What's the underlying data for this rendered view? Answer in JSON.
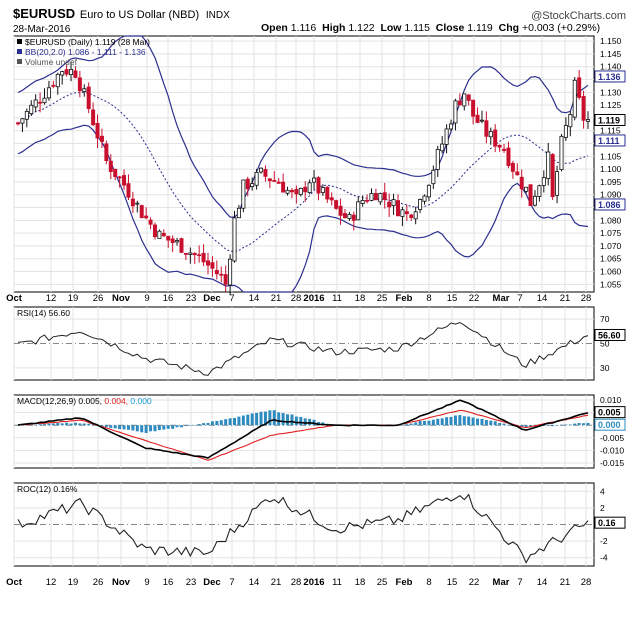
{
  "header": {
    "symbol": "$EURUSD",
    "name": "Euro to US Dollar (NBD)",
    "exchange": "INDX",
    "date": "28-Mar-2016",
    "watermark": "@StockCharts.com",
    "quote": {
      "open_label": "Open",
      "open": "1.116",
      "high_label": "High",
      "high": "1.122",
      "low_label": "Low",
      "low": "1.115",
      "close_label": "Close",
      "close": "1.119",
      "chg_label": "Chg",
      "chg": "+0.003 (+0.29%)"
    }
  },
  "price_panel": {
    "legend": [
      {
        "text": "$EURUSD (Daily) 1.119 (28 Mar)",
        "color": "#000000"
      },
      {
        "text": "BB(20,2.0) 1.086 - 1.111 - 1.136",
        "color": "#2b2f8f"
      },
      {
        "text": "Volume undef",
        "color": "#555555"
      }
    ],
    "y_ticks": [
      "1.150",
      "1.145",
      "1.140",
      "1.135",
      "1.130",
      "1.125",
      "1.120",
      "1.115",
      "1.110",
      "1.105",
      "1.100",
      "1.095",
      "1.090",
      "1.085",
      "1.080",
      "1.075",
      "1.070",
      "1.065",
      "1.060",
      "1.055"
    ],
    "price_label": "1.119",
    "upper_band_label": "1.136",
    "middle_band_label": "1.111",
    "lower_band_label": "1.086"
  },
  "rsi_panel": {
    "legend": "RSI(14) 56.60",
    "y_ticks": [
      "70",
      "50",
      "30"
    ],
    "value_label": "56.60"
  },
  "macd_panel": {
    "legend_prefix": "MACD(12,26,9) 0.005,",
    "legend_signal": "0.004,",
    "legend_hist": "0.000",
    "y_ticks": [
      "0.010",
      "0.005",
      "0.000",
      "-0.005",
      "-0.010",
      "-0.015"
    ],
    "macd_label": "0.005",
    "hist_label": "0.000"
  },
  "roc_panel": {
    "legend": "ROC(12) 0.16%",
    "y_ticks": [
      "4",
      "2",
      "-2",
      "-4"
    ],
    "value_label": "0.16"
  },
  "x_axis_labels": [
    "Oct",
    "12",
    "19",
    "26",
    "Nov",
    "9",
    "16",
    "23",
    "Dec",
    "7",
    "14",
    "21",
    "28",
    "2016",
    "11",
    "18",
    "25",
    "Feb",
    "8",
    "15",
    "22",
    "Mar",
    "7",
    "14",
    "21",
    "28"
  ],
  "colors": {
    "up": "#111111",
    "down": "#c8102e",
    "bands": "#2b2f8f",
    "macd": "#000000",
    "signal": "#e02020",
    "histogram": "#2e8bc0",
    "accent_signal_text": "#e02020",
    "accent_hist_text": "#1a9ad6"
  },
  "chart_data": [
    {
      "type": "candlestick",
      "title": "$EURUSD Euro to US Dollar (NBD)",
      "x": [
        "2015-09-28",
        "2015-10-05",
        "2015-10-12",
        "2015-10-19",
        "2015-10-26",
        "2015-11-02",
        "2015-11-09",
        "2015-11-16",
        "2015-11-23",
        "2015-11-30",
        "2015-12-07",
        "2015-12-14",
        "2015-12-21",
        "2015-12-28",
        "2016-01-04",
        "2016-01-11",
        "2016-01-18",
        "2016-01-25",
        "2016-02-01",
        "2016-02-08",
        "2016-02-15",
        "2016-02-22",
        "2016-03-01",
        "2016-03-07",
        "2016-03-14",
        "2016-03-21",
        "2016-03-28"
      ],
      "close_approx": [
        1.118,
        1.128,
        1.138,
        1.127,
        1.1,
        1.086,
        1.077,
        1.07,
        1.061,
        1.088,
        1.099,
        1.092,
        1.097,
        1.087,
        1.085,
        1.091,
        1.088,
        1.083,
        1.094,
        1.124,
        1.113,
        1.102,
        1.087,
        1.103,
        1.127,
        1.117,
        1.119
      ],
      "ylim": [
        1.052,
        1.152
      ],
      "series": [
        {
          "name": "$EURUSD (Daily)"
        },
        {
          "name": "BB(20,2.0)"
        }
      ]
    },
    {
      "type": "line",
      "name": "RSI(14)",
      "x": [
        "2015-09-28",
        "2015-10-19",
        "2015-11-09",
        "2015-11-30",
        "2015-12-21",
        "2016-01-11",
        "2016-02-01",
        "2016-02-22",
        "2016-03-14",
        "2016-03-28"
      ],
      "values": [
        49,
        61,
        38,
        26,
        53,
        43,
        46,
        69,
        32,
        57
      ],
      "ylim": [
        20,
        80
      ]
    },
    {
      "type": "line",
      "name": "MACD(12,26,9)",
      "x": [
        "2015-09-28",
        "2015-10-19",
        "2015-11-09",
        "2015-11-30",
        "2015-12-21",
        "2016-01-11",
        "2016-02-01",
        "2016-02-22",
        "2016-03-14",
        "2016-03-28"
      ],
      "series": [
        {
          "name": "MACD",
          "values": [
            0.0,
            0.003,
            -0.009,
            -0.013,
            0.002,
            0.0,
            0.0,
            0.01,
            -0.002,
            0.005
          ]
        },
        {
          "name": "Signal",
          "values": [
            0.0,
            0.002,
            -0.006,
            -0.014,
            -0.004,
            0.0,
            0.0,
            0.006,
            -0.001,
            0.004
          ]
        },
        {
          "name": "Histogram",
          "values": [
            0.0,
            0.002,
            -0.004,
            0.002,
            0.003,
            0.0,
            0.0,
            0.003,
            -0.002,
            0.0
          ]
        }
      ],
      "ylim": [
        -0.017,
        0.012
      ]
    },
    {
      "type": "line",
      "name": "ROC(12)",
      "x": [
        "2015-09-28",
        "2015-10-19",
        "2015-11-09",
        "2015-11-30",
        "2015-12-21",
        "2016-01-11",
        "2016-02-01",
        "2016-02-22",
        "2016-03-14",
        "2016-03-28"
      ],
      "values": [
        0.0,
        2.5,
        -3.0,
        -3.5,
        3.5,
        -0.5,
        0.5,
        4.0,
        -4.0,
        0.16
      ],
      "ylim": [
        -5,
        5
      ]
    }
  ]
}
